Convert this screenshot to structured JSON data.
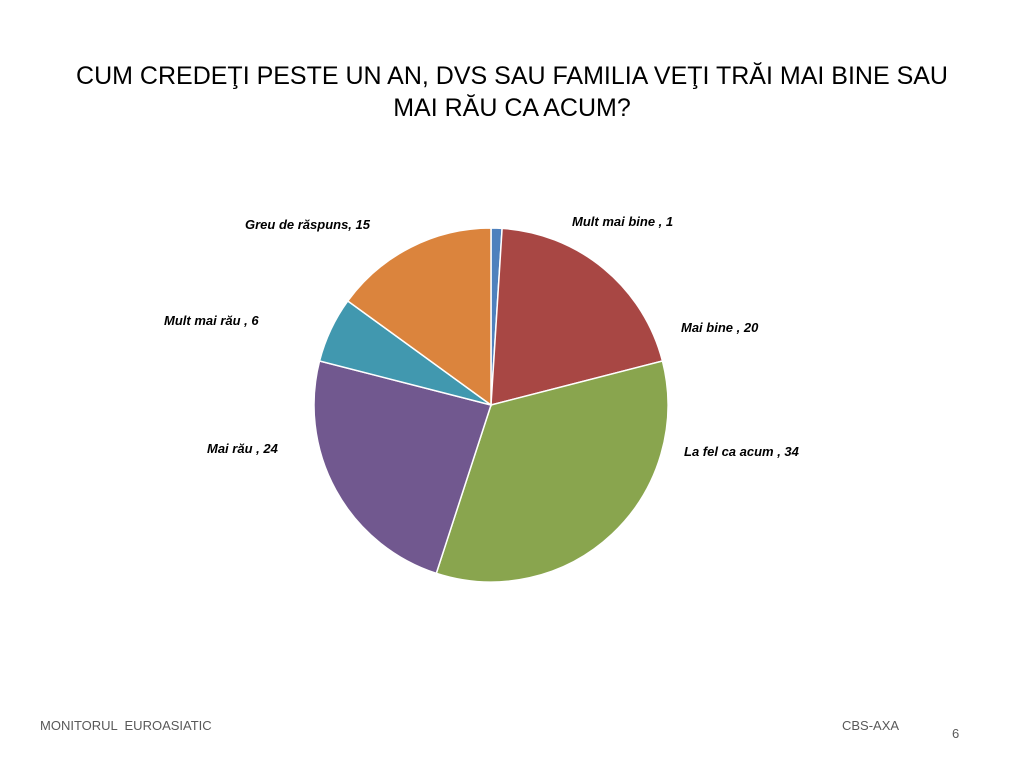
{
  "chart_data": {
    "type": "pie",
    "title": "CUM CREDEŢI PESTE UN AN, DVS SAU FAMILIA VEŢI TRĂI MAI BINE SAU MAI RĂU CA ACUM?",
    "slices": [
      {
        "label": "Mult mai bine , 1",
        "value": 1,
        "color": "#4F81BD"
      },
      {
        "label": "Mai bine , 20",
        "value": 20,
        "color": "#A84744"
      },
      {
        "label": "La fel ca acum , 34",
        "value": 34,
        "color": "#89A54E"
      },
      {
        "label": "Mai rău , 24",
        "value": 24,
        "color": "#71588F"
      },
      {
        "label": "Mult mai rău , 6",
        "value": 6,
        "color": "#4198AF"
      },
      {
        "label": "Greu de răspuns, 15",
        "value": 15,
        "color": "#DB843D"
      }
    ]
  },
  "footer": {
    "left": "MONITORUL  EUROASIATIC",
    "right": "CBS-AXA",
    "page_number": "6"
  }
}
